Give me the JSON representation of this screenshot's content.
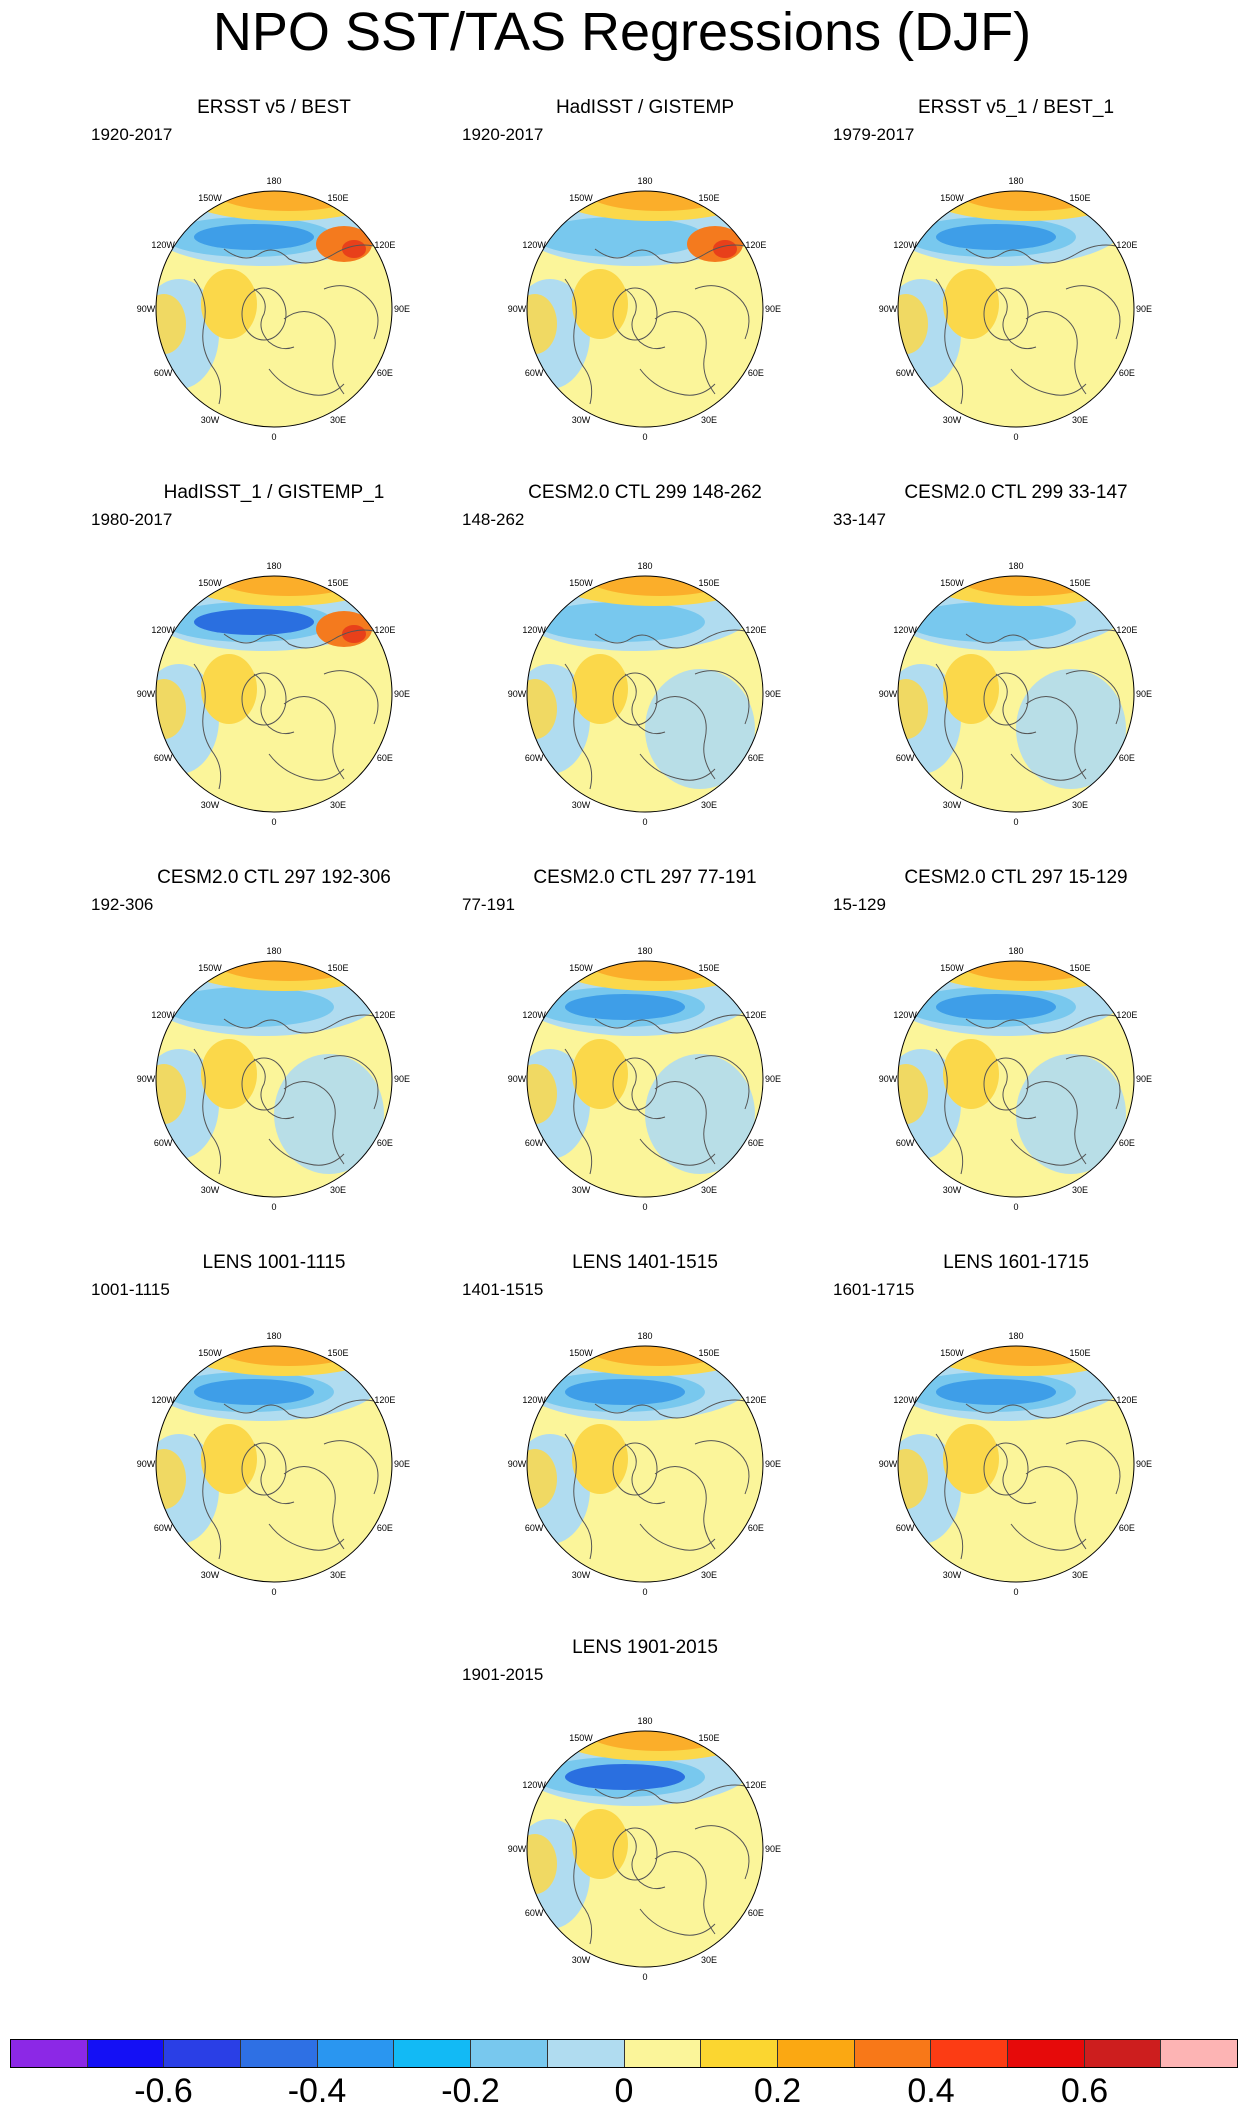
{
  "title": "NPO SST/TAS Regressions (DJF)",
  "colors": {
    "ocean_blue": "#b0dcf0",
    "light_blue": "#78c8ee",
    "mid_blue": "#3e9ee8",
    "deep_blue": "#2a6fe0",
    "pale_yellow": "#fbf59a",
    "gold": "#fbd84a",
    "orange": "#fbae2a",
    "dark_orange": "#f47a1e",
    "red": "#e8401a",
    "white": "#ffffff",
    "coast": "#555555"
  },
  "longitude_labels": [
    "180",
    "150E",
    "120E",
    "90E",
    "60E",
    "30E",
    "0",
    "30W",
    "60W",
    "90W",
    "120W",
    "150W"
  ],
  "panels": [
    {
      "title": "ERSST v5 / BEST",
      "years": "1920-2017"
    },
    {
      "title": "HadISST / GISTEMP",
      "years": "1920-2017"
    },
    {
      "title": "ERSST v5_1 / BEST_1",
      "years": "1979-2017"
    },
    {
      "title": "HadISST_1 / GISTEMP_1",
      "years": "1980-2017"
    },
    {
      "title": "CESM2.0 CTL 299 148-262",
      "years": "148-262"
    },
    {
      "title": "CESM2.0 CTL 299 33-147",
      "years": "33-147"
    },
    {
      "title": "CESM2.0 CTL 297 192-306",
      "years": "192-306"
    },
    {
      "title": "CESM2.0 CTL 297 77-191",
      "years": "77-191"
    },
    {
      "title": "CESM2.0 CTL 297 15-129",
      "years": "15-129"
    },
    {
      "title": "LENS 1001-1115",
      "years": "1001-1115"
    },
    {
      "title": "LENS 1401-1515",
      "years": "1401-1515"
    },
    {
      "title": "LENS 1601-1715",
      "years": "1601-1715"
    },
    {
      "title": "LENS 1901-2015",
      "years": "1901-2015"
    }
  ],
  "colorbar": {
    "colors": [
      "#8c28e6",
      "#1410f5",
      "#2a3fe6",
      "#2e70e4",
      "#2a96f0",
      "#12baf5",
      "#78c8ee",
      "#b0dcf0",
      "#fbf59a",
      "#fbd630",
      "#fba812",
      "#f87818",
      "#fc3c14",
      "#e60a0a",
      "#cd1e1e",
      "#fdb4b4"
    ],
    "labels": [
      "-0.6",
      "-0.4",
      "-0.2",
      "0",
      "0.2",
      "0.4",
      "0.6"
    ]
  }
}
